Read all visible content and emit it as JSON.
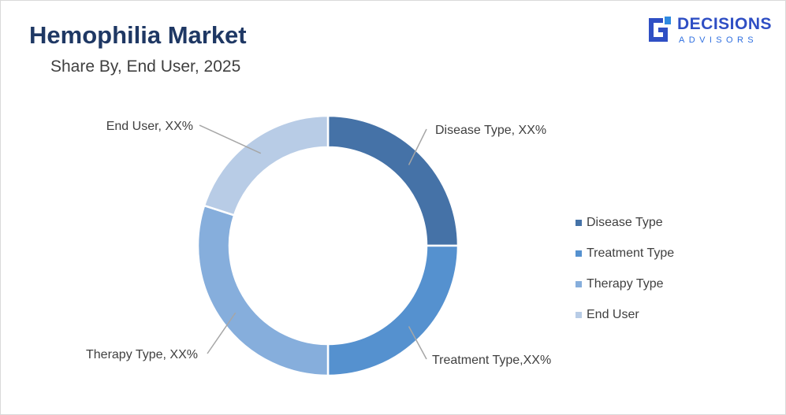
{
  "header": {
    "title": "Hemophilia Market",
    "subtitle": "Share By, End User, 2025"
  },
  "logo": {
    "name": "DECISIONS",
    "tagline": "ADVISORS",
    "colors": {
      "primary": "#2f4fc4",
      "accent": "#2f8ae0"
    }
  },
  "chart_data": {
    "type": "pie",
    "donut": true,
    "title": "Hemophilia Market",
    "subtitle": "Share By, End User, 2025",
    "categories": [
      "Disease Type",
      "Treatment Type",
      "Therapy Type",
      "End User"
    ],
    "values": [
      25,
      25,
      30,
      20
    ],
    "value_labels": [
      "Disease Type, XX%",
      "Treatment Type,XX%",
      "Therapy Type, XX%",
      "End User, XX%"
    ],
    "colors": [
      "#4572a7",
      "#5591cf",
      "#86aedc",
      "#b8cce6"
    ],
    "legend_position": "right"
  }
}
